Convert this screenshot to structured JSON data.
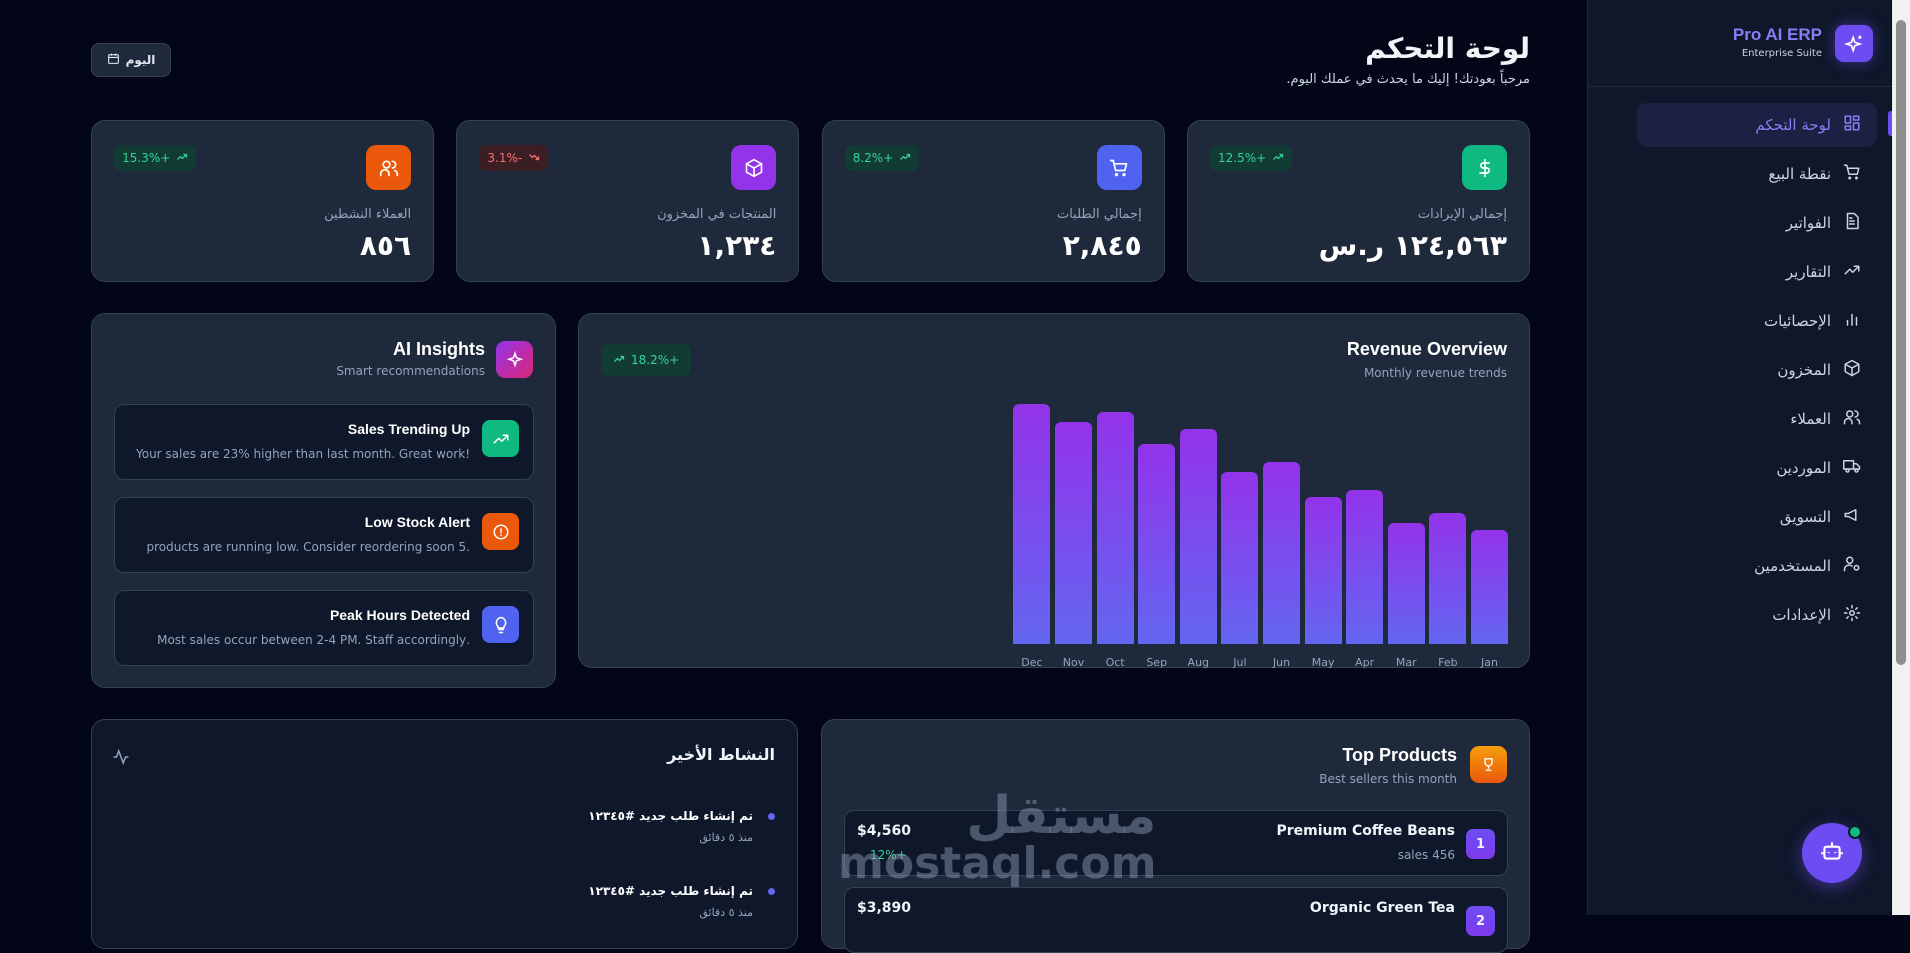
{
  "header": {
    "title": "لوحة التحكم",
    "subtitle": "مرحباً بعودتك! إليك ما يحدث في عملك اليوم.",
    "date_button": "اليوم"
  },
  "sidebar": {
    "brand": "Pro AI ERP",
    "brand_sub": "Enterprise Suite",
    "items": [
      {
        "label": "لوحة التحكم",
        "icon": "grid-icon",
        "active": true
      },
      {
        "label": "نقطة البيع",
        "icon": "cart-icon"
      },
      {
        "label": "الفواتير",
        "icon": "file-icon"
      },
      {
        "label": "التقارير",
        "icon": "trend-icon"
      },
      {
        "label": "الإحصائيات",
        "icon": "bar-chart-icon"
      },
      {
        "label": "المخزون",
        "icon": "box-icon"
      },
      {
        "label": "العملاء",
        "icon": "users-icon"
      },
      {
        "label": "الموردين",
        "icon": "truck-icon"
      },
      {
        "label": "التسويق",
        "icon": "megaphone-icon"
      },
      {
        "label": "المستخدمين",
        "icon": "user-cog-icon"
      },
      {
        "label": "الإعدادات",
        "icon": "gear-icon"
      }
    ]
  },
  "stats": [
    {
      "label": "إجمالي الإيرادات",
      "value": "١٢٤,٥٦٣ ر.س",
      "change": "12.5%+",
      "trend": "up",
      "color": "#10b981",
      "icon": "dollar-icon"
    },
    {
      "label": "إجمالي الطلبات",
      "value": "٢,٨٤٥",
      "change": "8.2%+",
      "trend": "up",
      "color": "#4f63f0",
      "icon": "cart-icon"
    },
    {
      "label": "المنتجات في المخزون",
      "value": "١,٢٣٤",
      "change": "3.1%-",
      "trend": "down",
      "color": "#9333ea",
      "icon": "box-icon"
    },
    {
      "label": "العملاء النشطين",
      "value": "٨٥٦",
      "change": "15.3%+",
      "trend": "up",
      "color": "#ea580c",
      "icon": "users-icon"
    }
  ],
  "revenue": {
    "title": "Revenue Overview",
    "subtitle": "Monthly revenue trends",
    "badge": "18.2%+"
  },
  "chart_data": {
    "type": "bar",
    "categories": [
      "Jan",
      "Feb",
      "Mar",
      "Apr",
      "May",
      "Jun",
      "Jul",
      "Aug",
      "Sep",
      "Oct",
      "Nov",
      "Dec"
    ],
    "values": [
      45,
      52,
      48,
      61,
      58,
      72,
      68,
      85,
      79,
      92,
      88,
      95
    ],
    "ylim": [
      0,
      95
    ],
    "grid": false,
    "direction": "rtl",
    "colors": [
      "#9333ea",
      "#6366f1"
    ]
  },
  "insights": {
    "title": "AI Insights",
    "subtitle": "Smart recommendations",
    "items": [
      {
        "title": "Sales Trending Up",
        "desc": "!Your sales are 23% higher than last month. Great work",
        "color": "#10b981",
        "icon": "trending-up-icon"
      },
      {
        "title": "Low Stock Alert",
        "desc": ".products are running low. Consider reordering soon 5",
        "color": "#ea580c",
        "icon": "alert-circle-icon"
      },
      {
        "title": "Peak Hours Detected",
        "desc": ".Most sales occur between 2-4 PM. Staff accordingly",
        "color": "#4f63f0",
        "icon": "lightbulb-icon"
      }
    ]
  },
  "activity": {
    "title": "النشاط الأخير",
    "items": [
      {
        "title": "تم إنشاء طلب جديد #١٢٣٤٥",
        "time": "منذ ٥ دقائق"
      },
      {
        "title": "تم إنشاء طلب جديد #١٢٣٤٥",
        "time": "منذ ٥ دقائق"
      }
    ]
  },
  "products": {
    "title": "Top Products",
    "subtitle": "Best sellers this month",
    "items": [
      {
        "rank": "1",
        "name": "Premium Coffee Beans",
        "sales": "sales 456",
        "price": "$4,560",
        "change": "12%+"
      },
      {
        "rank": "2",
        "name": "Organic Green Tea",
        "sales": "",
        "price": "$3,890",
        "change": ""
      }
    ]
  },
  "watermark": {
    "ar": "مستقل",
    "en": "mostaql.com"
  }
}
